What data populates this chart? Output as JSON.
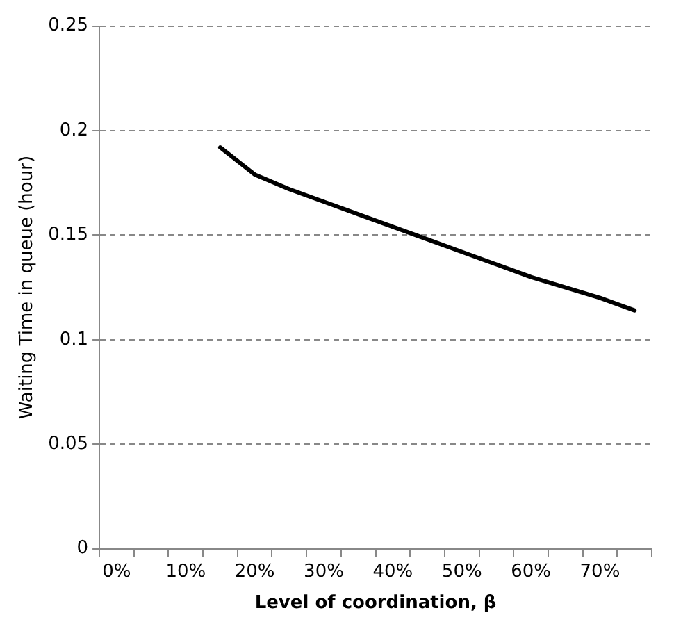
{
  "chart_data": {
    "type": "line",
    "xlabel": "Level of coordination, β",
    "ylabel": "Waiting Time in queue (hour)",
    "categories": [
      "0%",
      null,
      "10%",
      null,
      "20%",
      null,
      "30%",
      null,
      "40%",
      null,
      "50%",
      null,
      "60%",
      null,
      "70%",
      null
    ],
    "series": [
      {
        "color": "#000000",
        "values": [
          null,
          null,
          null,
          0.192,
          0.179,
          0.172,
          0.166,
          0.16,
          0.154,
          0.148,
          0.142,
          0.136,
          0.13,
          0.125,
          0.12,
          0.114
        ]
      }
    ],
    "ylim": [
      0,
      0.25
    ],
    "yticks": [
      0,
      0.05,
      0.1,
      0.15,
      0.2,
      0.25
    ],
    "grid": "y",
    "legend": false,
    "marker": "none",
    "line_style": "solid"
  }
}
